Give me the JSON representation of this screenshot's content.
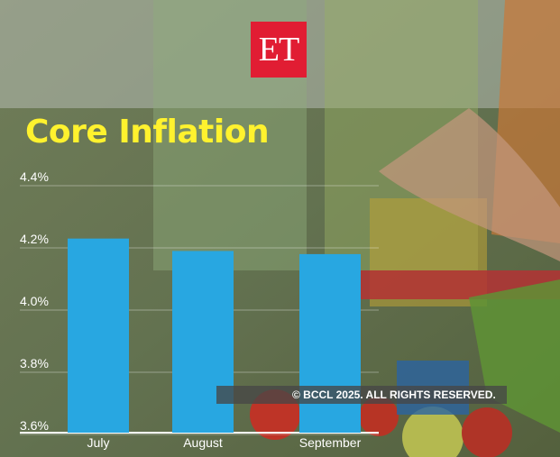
{
  "logo": {
    "text": "ET"
  },
  "copyright": "© BCCL 2025. ALL RIGHTS RESERVED.",
  "chart_data": {
    "type": "bar",
    "title": "Core Inflation",
    "xlabel": "",
    "ylabel": "",
    "categories": [
      "July",
      "August",
      "September"
    ],
    "values": [
      4.23,
      4.19,
      4.18
    ],
    "ylim": [
      3.6,
      4.4
    ],
    "yticks": [
      3.6,
      3.8,
      4.0,
      4.2,
      4.4
    ],
    "ytick_labels": [
      "3.6%",
      "3.8%",
      "4.0%",
      "4.2%",
      "4.4%"
    ],
    "grid": true,
    "bar_color": "#28a7e1",
    "title_color": "#fff22e"
  },
  "colors": {
    "logo_red": "#e11d33"
  }
}
